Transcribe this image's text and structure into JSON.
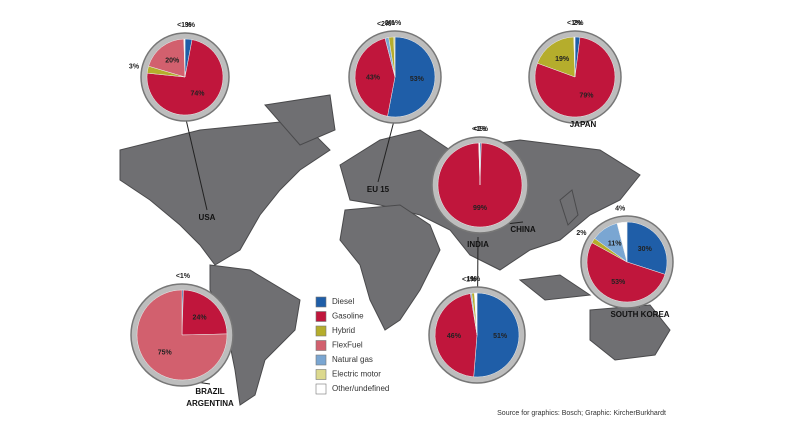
{
  "chart_data": [
    {
      "type": "pie",
      "title": "USA",
      "categories": [
        "Diesel",
        "Gasoline",
        "Hybrid",
        "FlexFuel",
        "Other/undefined"
      ],
      "values": [
        3,
        74,
        3,
        20,
        0.5
      ],
      "value_labels": [
        "3%",
        "74%",
        "3%",
        "20%",
        "<1%"
      ]
    },
    {
      "type": "pie",
      "title": "EU 15",
      "categories": [
        "Diesel",
        "Gasoline",
        "Natural gas",
        "Hybrid",
        "Electric motor"
      ],
      "values": [
        53,
        43,
        1.5,
        2,
        0.5
      ],
      "value_labels": [
        "53%",
        "43%",
        "<2%",
        "2%",
        "<1%"
      ]
    },
    {
      "type": "pie",
      "title": "JAPAN",
      "categories": [
        "Diesel",
        "Gasoline",
        "Hybrid",
        "Other/undefined"
      ],
      "values": [
        2,
        79,
        19,
        0.5
      ],
      "value_labels": [
        "2%",
        "79%",
        "19%",
        "<1%"
      ]
    },
    {
      "type": "pie",
      "title": "CHINA",
      "categories": [
        "Diesel",
        "Gasoline",
        "Other/undefined"
      ],
      "values": [
        0.5,
        99,
        0.5
      ],
      "value_labels": [
        "<1%",
        "99%",
        "<1%"
      ]
    },
    {
      "type": "pie",
      "title": "SOUTH KOREA",
      "categories": [
        "Diesel",
        "Gasoline",
        "Hybrid",
        "Natural gas",
        "Other/undefined"
      ],
      "values": [
        30,
        53,
        2,
        11,
        4
      ],
      "value_labels": [
        "30%",
        "53%",
        "2%",
        "11%",
        "4%"
      ]
    },
    {
      "type": "pie",
      "title": "INDIA",
      "categories": [
        "Diesel",
        "Gasoline",
        "Natural gas",
        "Hybrid",
        "Other/undefined"
      ],
      "values": [
        51,
        46,
        0.5,
        1,
        1
      ],
      "value_labels": [
        "51%",
        "46%",
        "<1%",
        "1%",
        "1%"
      ]
    },
    {
      "type": "pie",
      "title": "BRAZIL",
      "subtitle": "ARGENTINA",
      "categories": [
        "Diesel",
        "Gasoline",
        "FlexFuel"
      ],
      "values": [
        0.5,
        24,
        75
      ],
      "value_labels": [
        "<1%",
        "24%",
        "75%"
      ]
    }
  ],
  "legend": [
    {
      "name": "Diesel",
      "color": "#1f5ea8"
    },
    {
      "name": "Gasoline",
      "color": "#c0163c"
    },
    {
      "name": "Hybrid",
      "color": "#b5ad2c"
    },
    {
      "name": "FlexFuel",
      "color": "#d2606e"
    },
    {
      "name": "Natural gas",
      "color": "#7aa6d2"
    },
    {
      "name": "Electric motor",
      "color": "#dcd98e"
    },
    {
      "name": "Other/undefined",
      "color": "#ffffff"
    }
  ],
  "source": "Source for graphics: Bosch; Graphic: KircherBurkhardt"
}
